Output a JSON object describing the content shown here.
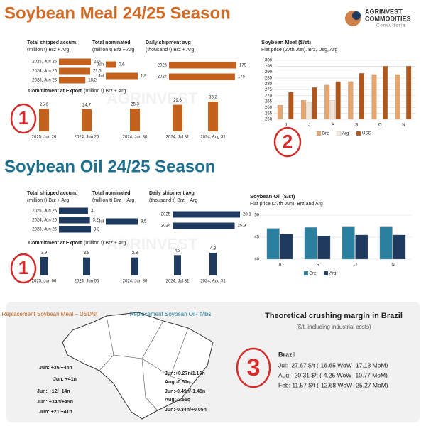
{
  "sections": {
    "meal_title": "Soybean Meal 24/25 Season",
    "oil_title": "Soybean Oil 24/25 Season"
  },
  "logo": {
    "name": "AGRINVEST",
    "name2": "COMMODITIES",
    "sub": "Consultoria"
  },
  "watermark": "AGRINVEST",
  "badges": [
    "1",
    "2",
    "1",
    "3"
  ],
  "chart_data": [
    {
      "type": "hbar",
      "title": "Total shipped accum.",
      "subtitle": "(million t) Brz + Arg",
      "categories": [
        "2025, Jun 26",
        "2024, Jun 26",
        "2023, Jun 26"
      ],
      "values": [
        22.0,
        21.5,
        18.2
      ],
      "value_labels": [
        "22,0",
        "21,5",
        "18,2"
      ],
      "color": "#c4621d"
    },
    {
      "type": "hbar",
      "title": "Total nominated",
      "subtitle": "(million t) Brz + Arg",
      "categories": [
        "Jun",
        "Jul"
      ],
      "values": [
        0.6,
        1.9
      ],
      "value_labels": [
        "0,6",
        "1,9"
      ],
      "color": "#c4621d"
    },
    {
      "type": "hbar",
      "title": "Daily shipment avg",
      "subtitle": "(thousand t) Brz + Arg",
      "categories": [
        "2025",
        "2024"
      ],
      "values": [
        179,
        175
      ],
      "color": "#c4621d"
    },
    {
      "type": "vbar",
      "title": "Commitment at Export",
      "subtitle": "(million t) Brz + Arg",
      "categories": [
        "2025, Jun 26",
        "2024, Jun 26",
        "2024, Jun 30",
        "2024, Jul 31",
        "2024, Aug 31"
      ],
      "values": [
        25.0,
        24.7,
        25.3,
        29.6,
        33.2
      ],
      "value_labels": [
        "25,0",
        "24,7",
        "25,3",
        "29,6",
        "33,2"
      ],
      "color": "#c4621d"
    },
    {
      "type": "grouped",
      "title": "Soybean Meal ($/st)",
      "subtitle": "Flat price (27th Jun). Brz, Usg, Arg",
      "categories": [
        "J",
        "J",
        "A",
        "S",
        "O",
        "N"
      ],
      "series": [
        {
          "name": "Brz",
          "color": "#e6a56c",
          "values": [
            262,
            266,
            279,
            282,
            288,
            288
          ]
        },
        {
          "name": "Arg",
          "color": "#f4e6d8",
          "values": [
            null,
            264,
            266,
            null,
            null,
            null
          ]
        },
        {
          "name": "USG",
          "color": "#b0561b",
          "values": [
            273,
            277,
            282,
            289,
            295,
            295
          ]
        }
      ],
      "ylim": [
        250,
        300
      ],
      "yticks": [
        250,
        255,
        260,
        265,
        270,
        275,
        280,
        285,
        290,
        295,
        300
      ],
      "grid": true
    },
    {
      "type": "hbar",
      "title": "Total shipped accum.",
      "subtitle": "(million t) Brz + Arg",
      "categories": [
        "2025, Jun 26",
        "2024, Jun 26",
        "2023, Jun 26"
      ],
      "values": [
        3,
        3.2,
        3.3
      ],
      "value_labels": [
        "3,",
        "3,2",
        "3,3"
      ],
      "color": "#1f3a5f"
    },
    {
      "type": "hbar",
      "title": "Total nominated",
      "subtitle": "(million t) Brz + Arg",
      "categories": [
        "Jul"
      ],
      "values": [
        9.5
      ],
      "value_labels": [
        "9,5"
      ],
      "color": "#1f3a5f"
    },
    {
      "type": "hbar",
      "title": "Daily shipment avg",
      "subtitle": "(thousand t) Brz + Arg",
      "categories": [
        "2025",
        "2024"
      ],
      "values": [
        28.1,
        25.9
      ],
      "value_labels": [
        "28,1",
        "25,9"
      ],
      "color": "#1f3a5f"
    },
    {
      "type": "vbar",
      "title": "Commitment at Export",
      "subtitle": "(million t) Brz + Arg",
      "categories": [
        "2025, Jun 06",
        "2024, Jun 06",
        "2024, Jun 30",
        "2024, Jul 31",
        "2024, Aug 31"
      ],
      "values": [
        3.9,
        3.8,
        3.8,
        4.3,
        4.8
      ],
      "value_labels": [
        "3,9",
        "3,8",
        "3,8",
        "4,3",
        "4,8"
      ],
      "color": "#1f3a5f"
    },
    {
      "type": "grouped",
      "title": "Soybean Oil ($/st)",
      "subtitle": "Flat price (27th Jun). Brz and Arg",
      "categories": [
        "A",
        "S",
        "O",
        "N"
      ],
      "series": [
        {
          "name": "Brz",
          "color": "#2b7f9f",
          "values": [
            47,
            47.2,
            47.3,
            47.3
          ]
        },
        {
          "name": "Arg",
          "color": "#1f3a5f",
          "values": [
            45.7,
            45.3,
            45.5,
            45.5
          ]
        }
      ],
      "ylim": [
        40,
        50
      ],
      "yticks": [
        40,
        45,
        50
      ],
      "grid": true
    }
  ],
  "brazil": {
    "meal_title": "Replacement Soybean Meal – USD/st",
    "oil_title": "Replacement Soybean Oil- ¢/lbs",
    "meal_labels": [
      "Jun: +36/+44n",
      "Jun: +41n",
      "Jun: +12/+14n",
      "Jun: +34n/+45n",
      "Jun: +21/+41n"
    ],
    "oil_labels": [
      "Jun:+0.27n/1.16n",
      "Aug:-0.51q",
      "Jun:-0.49n/-1.45n",
      "Aug:-2.55q",
      "Jun:-0.34n/+0.05n"
    ],
    "margin_title": "Theoretical crushing margin in Brazil",
    "margin_subtitle": "($/t, including industrial costs)",
    "margin_heading": "Brazil",
    "margin_lines": [
      "Jul: -27.67 $/t (-16.65 WoW -17.13 MoM)",
      "Aug: -20.31 $/t (-4.25 WoW -10.77 MoM)",
      "Feb: 11.57 $/t (-12.68 WoW -25.27 MoM)"
    ]
  }
}
